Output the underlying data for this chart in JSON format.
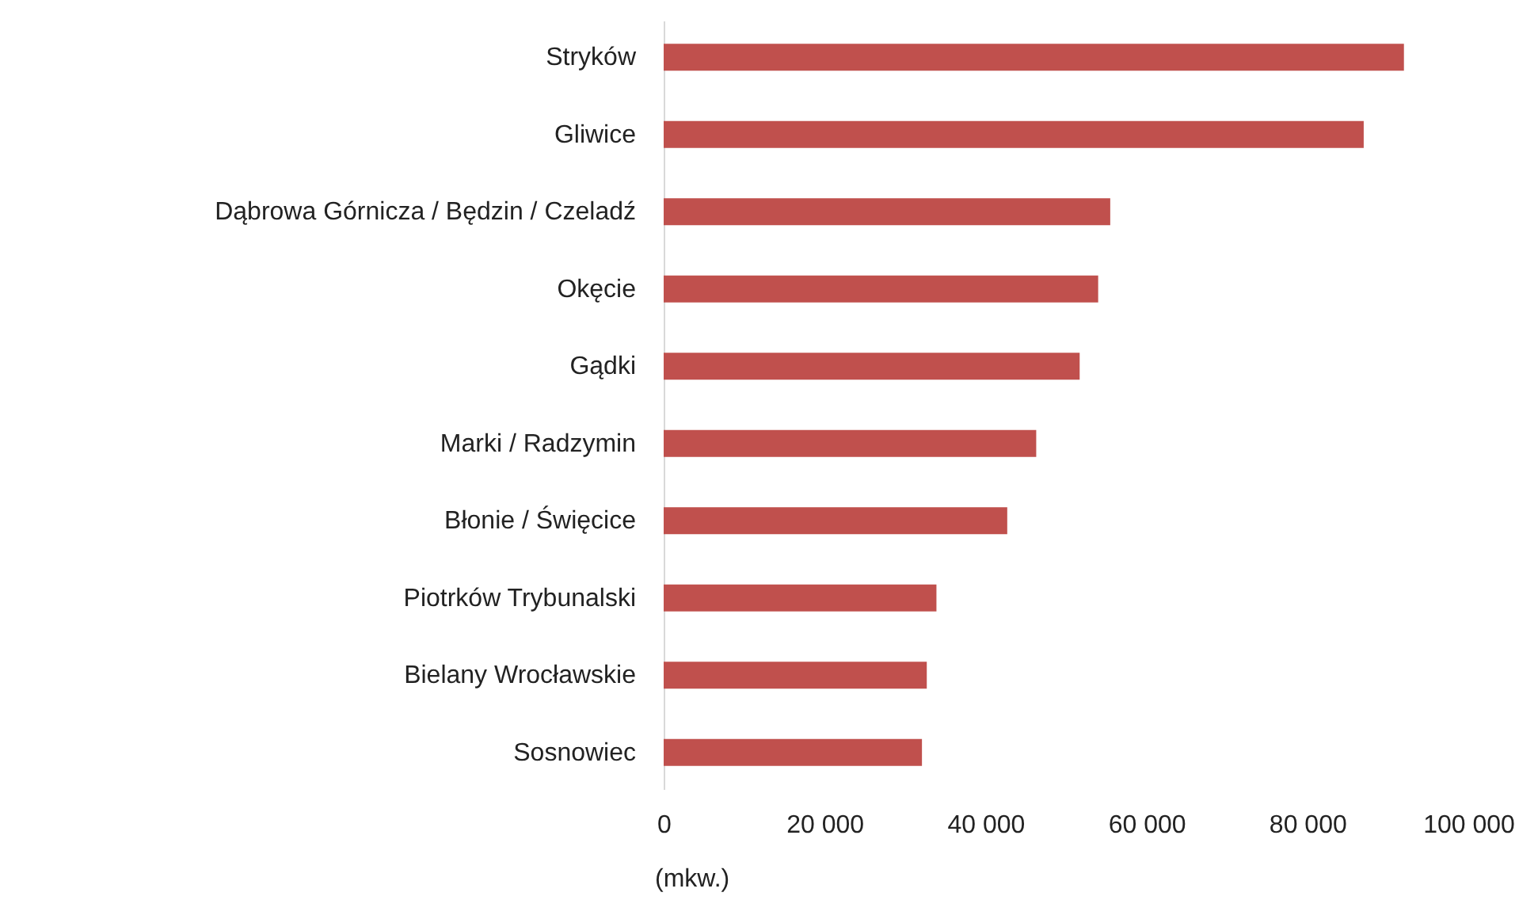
{
  "chart_data": {
    "type": "bar",
    "orientation": "horizontal",
    "xlabel": "(mkw.)",
    "categories": [
      "Stryków",
      "Gliwice",
      "Dąbrowa Górnicza / Będzin / Czeladź",
      "Okęcie",
      "Gądki",
      "Marki / Radzymin",
      "Błonie / Święcice",
      "Piotrków Trybunalski",
      "Bielany Wrocławskie",
      "Sosnowiec"
    ],
    "values": [
      92000,
      87000,
      55500,
      54000,
      51700,
      46300,
      42700,
      33900,
      32700,
      32100
    ],
    "color": "#c0504d",
    "xlim": [
      0,
      100000
    ],
    "xticks": [
      {
        "value": 0,
        "label": "0"
      },
      {
        "value": 20000,
        "label": "20 000"
      },
      {
        "value": 40000,
        "label": "40 000"
      },
      {
        "value": 60000,
        "label": "60 000"
      },
      {
        "value": 80000,
        "label": "80 000"
      },
      {
        "value": 100000,
        "label": "100 000"
      }
    ],
    "grid": false
  }
}
